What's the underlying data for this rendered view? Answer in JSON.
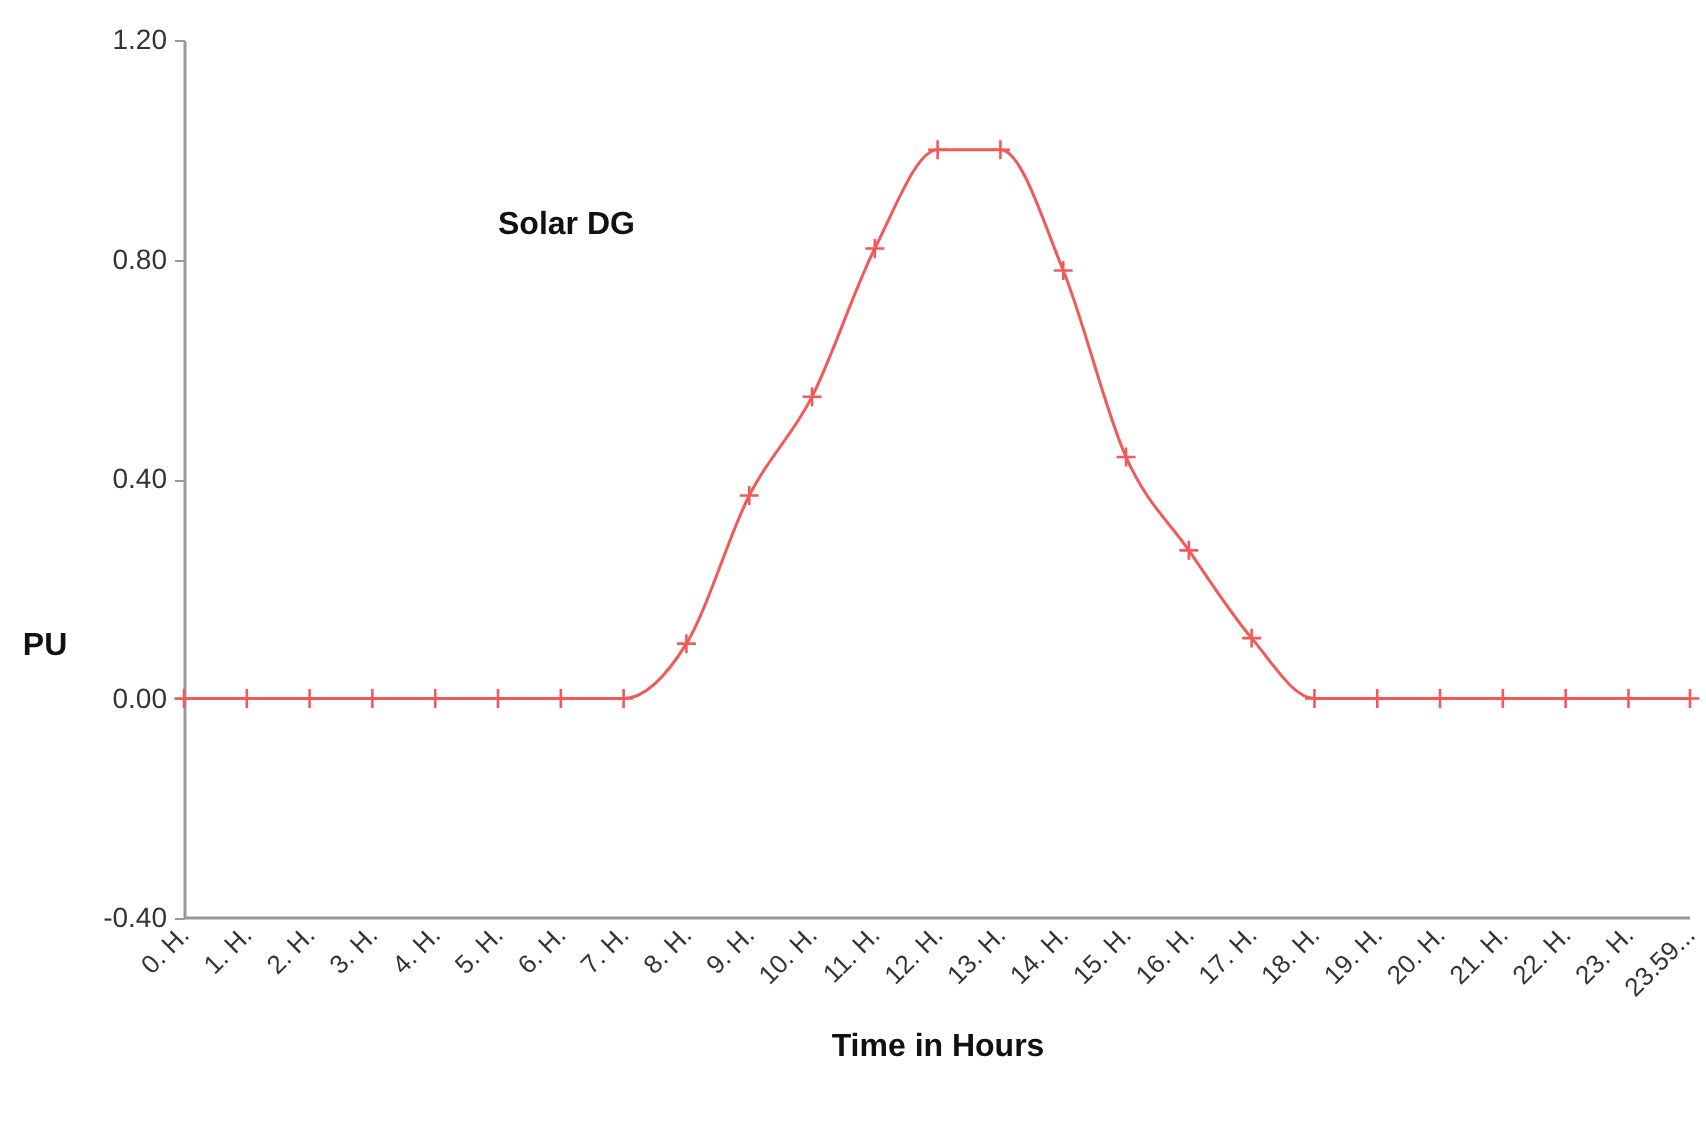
{
  "chart_data": {
    "type": "line",
    "xlabel": "Time in Hours",
    "ylabel": "PU",
    "x": [
      0,
      1,
      2,
      3,
      4,
      5,
      6,
      7,
      8,
      9,
      10,
      11,
      12,
      13,
      14,
      15,
      16,
      17,
      18,
      19,
      20,
      21,
      22,
      23,
      23.98
    ],
    "series": [
      {
        "name": "Solar DG",
        "color": "#f05a5a",
        "values": [
          0,
          0,
          0,
          0,
          0,
          0,
          0,
          0,
          0.1,
          0.37,
          0.55,
          0.82,
          1.0,
          1.0,
          0.78,
          0.44,
          0.27,
          0.11,
          0,
          0,
          0,
          0,
          0,
          0,
          0
        ]
      }
    ],
    "xlim": [
      0,
      23.98
    ],
    "xticks": [
      {
        "value": 0,
        "label": "0. H."
      },
      {
        "value": 1,
        "label": "1. H."
      },
      {
        "value": 2,
        "label": "2. H."
      },
      {
        "value": 3,
        "label": "3. H."
      },
      {
        "value": 4,
        "label": "4. H."
      },
      {
        "value": 5,
        "label": "5. H."
      },
      {
        "value": 6,
        "label": "6. H."
      },
      {
        "value": 7,
        "label": "7. H."
      },
      {
        "value": 8,
        "label": "8. H."
      },
      {
        "value": 9,
        "label": "9. H."
      },
      {
        "value": 10,
        "label": "10. H."
      },
      {
        "value": 11,
        "label": "11. H."
      },
      {
        "value": 12,
        "label": "12. H."
      },
      {
        "value": 13,
        "label": "13. H."
      },
      {
        "value": 14,
        "label": "14. H."
      },
      {
        "value": 15,
        "label": "15. H."
      },
      {
        "value": 16,
        "label": "16. H."
      },
      {
        "value": 17,
        "label": "17. H."
      },
      {
        "value": 18,
        "label": "18. H."
      },
      {
        "value": 19,
        "label": "19. H."
      },
      {
        "value": 20,
        "label": "20. H."
      },
      {
        "value": 21,
        "label": "21. H."
      },
      {
        "value": 22,
        "label": "22. H."
      },
      {
        "value": 23,
        "label": "23. H."
      },
      {
        "value": 23.98,
        "label": "23.59..."
      }
    ],
    "ylim": [
      -0.4,
      1.2
    ],
    "yticks": [
      {
        "value": -0.4,
        "label": "-0.40"
      },
      {
        "value": 0,
        "label": "0.00"
      },
      {
        "value": 0.4,
        "label": "0.40"
      },
      {
        "value": 0.8,
        "label": "0.80"
      },
      {
        "value": 1.2,
        "label": "1.20"
      }
    ],
    "grid": false,
    "marker": "cross",
    "line_style": "solid"
  }
}
